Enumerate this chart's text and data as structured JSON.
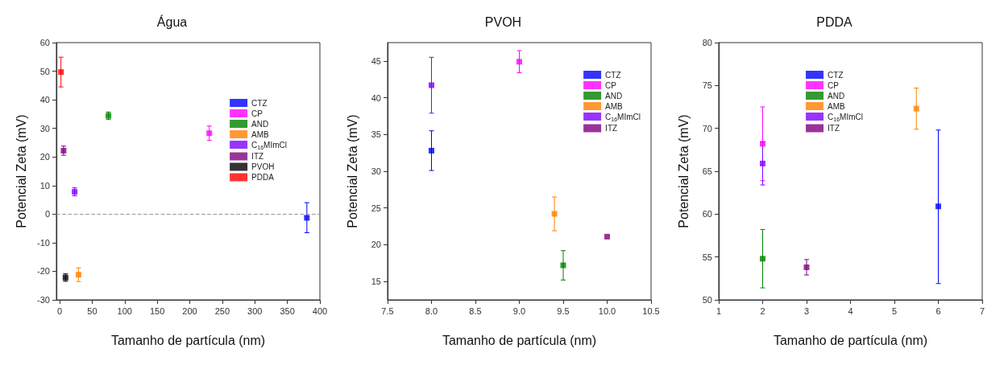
{
  "chart_data": [
    {
      "type": "scatter",
      "title": "Água",
      "xlabel": "Tamanho de partícula (nm)",
      "ylabel": "Potencial Zeta (mV)",
      "xlim": [
        -5,
        400
      ],
      "xticks": [
        0,
        50,
        100,
        150,
        200,
        250,
        300,
        350,
        400
      ],
      "ylim": [
        -30,
        60
      ],
      "yticks": [
        -30,
        -20,
        -10,
        0,
        10,
        20,
        30,
        40,
        50,
        60
      ],
      "grid": false,
      "legend": "right",
      "marker": "square",
      "ref_lines": [
        {
          "axis": "y",
          "value": 0,
          "color": "#999999",
          "line_style": "dashed"
        }
      ],
      "series": [
        {
          "name": "CTZ",
          "color": "#0000ff",
          "x": [
            380
          ],
          "values": [
            -1.3
          ],
          "errors": [
            [
              -6.5,
              4
            ]
          ]
        },
        {
          "name": "CP",
          "color": "#ff00ff",
          "x": [
            230
          ],
          "values": [
            28.3
          ],
          "errors": [
            2.5
          ]
        },
        {
          "name": "AND",
          "color": "#008000",
          "x": [
            75
          ],
          "values": [
            34.4
          ],
          "errors": [
            1.3
          ]
        },
        {
          "name": "AMB",
          "color": "#ff8000",
          "x": [
            29
          ],
          "values": [
            -21.2
          ],
          "errors": [
            [
              -23.6,
              -18.8
            ]
          ]
        },
        {
          "name": "C$_{16}$MImCl",
          "color": "#8000ff",
          "x": [
            23
          ],
          "values": [
            7.8
          ],
          "errors": [
            1.4
          ]
        },
        {
          "name": "ITZ",
          "color": "#800080",
          "x": [
            6
          ],
          "values": [
            22.2
          ],
          "errors": [
            1.6
          ]
        },
        {
          "name": "PVOH",
          "color": "#000000",
          "x": [
            9
          ],
          "values": [
            -22.2
          ],
          "errors": [
            1.3
          ]
        },
        {
          "name": "PDDA",
          "color": "#ff0000",
          "x": [
            2
          ],
          "values": [
            49.7
          ],
          "errors": [
            5.2
          ]
        }
      ]
    },
    {
      "type": "scatter",
      "title": "PVOH",
      "xlabel": "Tamanho de partícula (nm)",
      "ylabel": "Potencial Zeta (mV)",
      "xlim": [
        7.5,
        10.5
      ],
      "xticks": [
        {
          "value": 7.5,
          "label": "7.5"
        },
        {
          "value": 8,
          "label": "8.0"
        },
        {
          "value": 8.5,
          "label": "8.5"
        },
        {
          "value": 9,
          "label": "9.0"
        },
        {
          "value": 9.5,
          "label": "9.5"
        },
        {
          "value": 10,
          "label": "10.0"
        },
        {
          "value": 10.5,
          "label": "10.5"
        }
      ],
      "ylim": [
        12.5,
        47.5
      ],
      "yticks": [
        15,
        20,
        25,
        30,
        35,
        40,
        45
      ],
      "grid": false,
      "legend": "top right",
      "marker": "square",
      "series": [
        {
          "name": "CTZ",
          "color": "#0000ff",
          "x": [
            8
          ],
          "values": [
            32.8
          ],
          "errors": [
            2.7
          ]
        },
        {
          "name": "CP",
          "color": "#ff00ff",
          "x": [
            9
          ],
          "values": [
            44.9
          ],
          "errors": [
            1.5
          ]
        },
        {
          "name": "AND",
          "color": "#008000",
          "x": [
            9.5
          ],
          "values": [
            17.2
          ],
          "errors": [
            2
          ]
        },
        {
          "name": "AMB",
          "color": "#ff8000",
          "x": [
            9.4
          ],
          "values": [
            24.2
          ],
          "errors": [
            2.3
          ]
        },
        {
          "name": "C$_{16}$MImCl",
          "color": "#8000ff",
          "x": [
            8
          ],
          "values": [
            41.7
          ],
          "errors": [
            3.8
          ]
        },
        {
          "name": "ITZ",
          "color": "#800080",
          "x": [
            10
          ],
          "values": [
            21.1
          ],
          "errors": [
            null
          ]
        }
      ]
    },
    {
      "type": "scatter",
      "title": "PDDA",
      "xlabel": "Tamanho de partícula (nm)",
      "ylabel": "Potencial Zeta (mV)",
      "xlim": [
        1,
        7
      ],
      "xticks": [
        1,
        2,
        3,
        4,
        5,
        6,
        7
      ],
      "ylim": [
        50,
        80
      ],
      "yticks": [
        50,
        55,
        60,
        65,
        70,
        75,
        80
      ],
      "grid": false,
      "legend": "top",
      "marker": "square",
      "series": [
        {
          "name": "CTZ",
          "color": "#0000ff",
          "x": [
            6
          ],
          "values": [
            60.9
          ],
          "errors": [
            [
              51.9,
              69.8
            ]
          ]
        },
        {
          "name": "CP",
          "color": "#ff00ff",
          "x": [
            2
          ],
          "values": [
            68.2
          ],
          "errors": [
            4.3
          ]
        },
        {
          "name": "AND",
          "color": "#008000",
          "x": [
            2
          ],
          "values": [
            54.8
          ],
          "errors": [
            3.4
          ]
        },
        {
          "name": "AMB",
          "color": "#ff8000",
          "x": [
            5.5
          ],
          "values": [
            72.3
          ],
          "errors": [
            2.4
          ]
        },
        {
          "name": "C$_{16}$MImCl",
          "color": "#8000ff",
          "x": [
            2
          ],
          "values": [
            65.9
          ],
          "errors": [
            2.5
          ]
        },
        {
          "name": "ITZ",
          "color": "#800080",
          "x": [
            3
          ],
          "values": [
            53.8
          ],
          "errors": [
            0.9
          ]
        }
      ]
    }
  ]
}
